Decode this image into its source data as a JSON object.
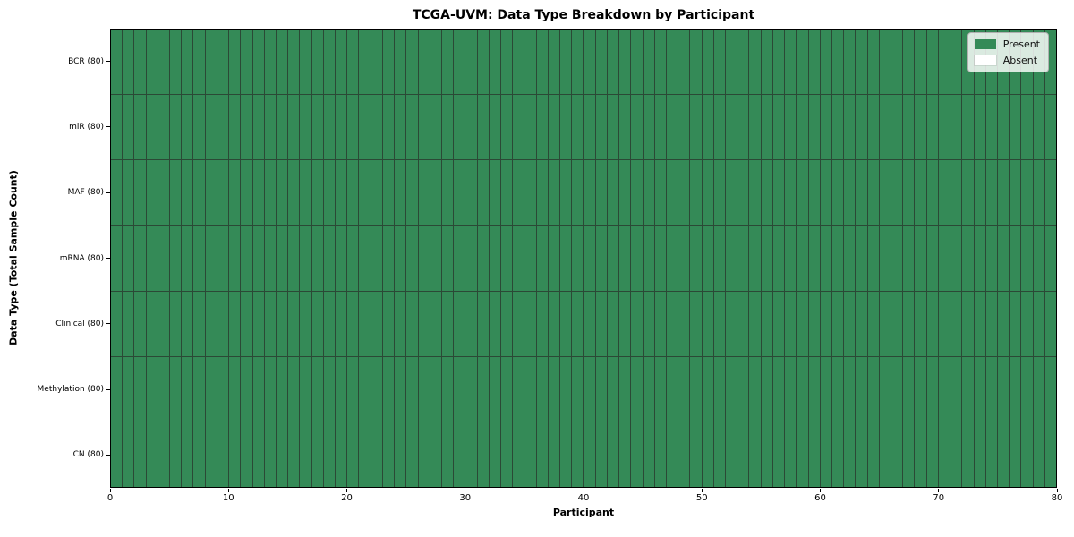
{
  "chart_data": {
    "type": "heatmap",
    "title": "TCGA-UVM: Data Type Breakdown by Participant",
    "xlabel": "Participant",
    "ylabel": "Data Type (Total Sample Count)",
    "x_ticks": [
      0,
      10,
      20,
      30,
      40,
      50,
      60,
      70,
      80
    ],
    "xlim": [
      0,
      80
    ],
    "n_participants": 80,
    "grid": "off",
    "legend_position": "upper right",
    "rows": [
      {
        "label": "BCR (80)",
        "present_count": 80,
        "absent_count": 0
      },
      {
        "label": "miR (80)",
        "present_count": 80,
        "absent_count": 0
      },
      {
        "label": "MAF (80)",
        "present_count": 80,
        "absent_count": 0
      },
      {
        "label": "mRNA (80)",
        "present_count": 80,
        "absent_count": 0
      },
      {
        "label": "Clinical (80)",
        "present_count": 80,
        "absent_count": 0
      },
      {
        "label": "Methylation (80)",
        "present_count": 80,
        "absent_count": 0
      },
      {
        "label": "CN (80)",
        "present_count": 80,
        "absent_count": 0
      }
    ],
    "legend": [
      {
        "label": "Present",
        "color": "#348a57"
      },
      {
        "label": "Absent",
        "color": "#ffffff"
      }
    ],
    "colors": {
      "present": "#348a57",
      "absent": "#ffffff",
      "cell_edge": "#2b4936",
      "spine": "#000000"
    }
  }
}
